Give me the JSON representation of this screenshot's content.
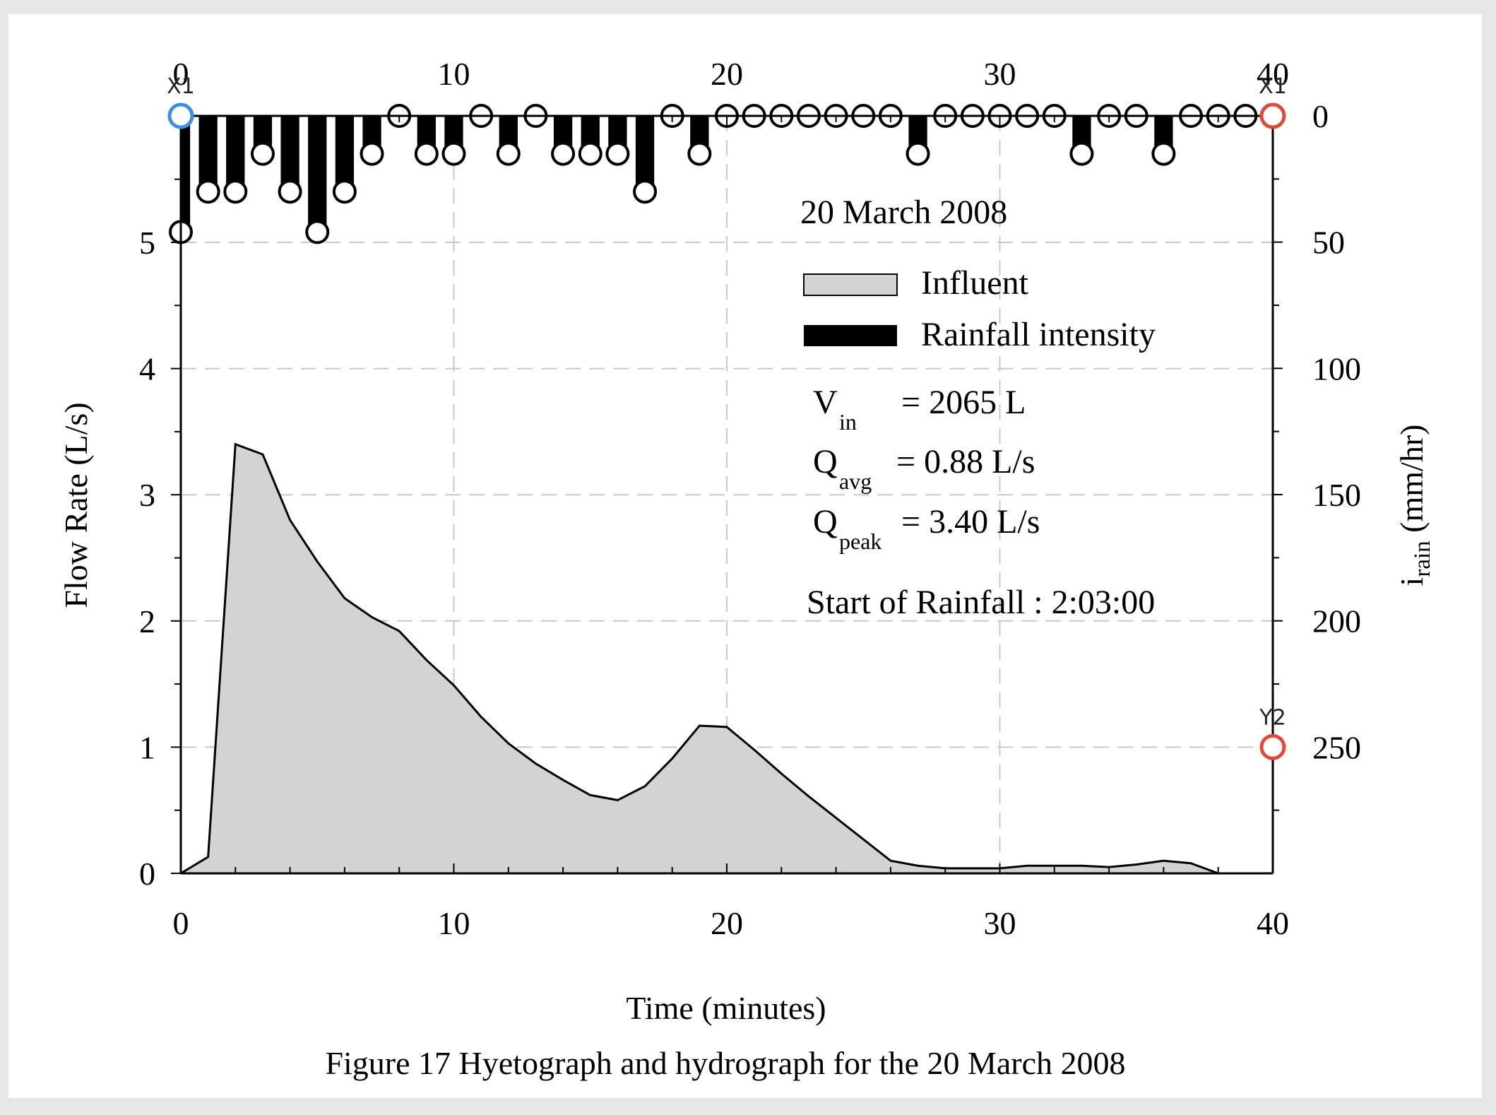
{
  "caption": "Figure 17 Hyetograph and hydrograph for the 20 March 2008",
  "colors": {
    "area_fill": "#d3d3d3",
    "bar_fill": "#000000",
    "grid": "#c8c8c8",
    "handle_blue": "#3d8fe0",
    "handle_red": "#e04a3a"
  },
  "chart_data": {
    "type": "area",
    "title": "20 March 2008",
    "xlabel": "Time (minutes)",
    "ylabel": "Flow Rate (L/s)",
    "y2label_main": "i",
    "y2label_sub": "rain",
    "y2label_units": " (mm/hr)",
    "xlim": [
      0,
      40
    ],
    "ylim": [
      0,
      6
    ],
    "y2lim": [
      0,
      300
    ],
    "y2_inverted": true,
    "grid": true,
    "legend_position": "top-right",
    "x_ticks": [
      0,
      10,
      20,
      30,
      40
    ],
    "y_ticks": [
      0,
      1,
      2,
      3,
      4,
      5
    ],
    "y2_ticks": [
      0,
      50,
      100,
      150,
      200,
      250
    ],
    "series": [
      {
        "name": "Influent",
        "type": "area",
        "x": [
          0,
          1,
          2,
          3,
          4,
          5,
          6,
          7,
          8,
          9,
          10,
          11,
          12,
          13,
          14,
          15,
          16,
          17,
          18,
          19,
          20,
          21,
          22,
          23,
          24,
          25,
          26,
          27,
          28,
          29,
          30,
          31,
          32,
          33,
          34,
          35,
          36,
          37,
          38,
          39,
          40
        ],
        "y": [
          0.0,
          0.13,
          3.4,
          3.32,
          2.8,
          2.47,
          2.18,
          2.03,
          1.92,
          1.69,
          1.49,
          1.24,
          1.03,
          0.87,
          0.74,
          0.62,
          0.58,
          0.69,
          0.91,
          1.17,
          1.16,
          0.98,
          0.79,
          0.61,
          0.44,
          0.27,
          0.1,
          0.06,
          0.04,
          0.04,
          0.04,
          0.06,
          0.06,
          0.06,
          0.05,
          0.07,
          0.1,
          0.08,
          0.0,
          0.0,
          0.0
        ]
      },
      {
        "name": "Rainfall intensity",
        "type": "bar",
        "axis": "y2",
        "x": [
          0,
          1,
          2,
          3,
          4,
          5,
          6,
          7,
          8,
          9,
          10,
          11,
          12,
          13,
          14,
          15,
          16,
          17,
          18,
          19,
          20,
          21,
          22,
          23,
          24,
          25,
          26,
          27,
          28,
          29,
          30,
          31,
          32,
          33,
          34,
          35,
          36,
          37,
          38,
          39,
          40
        ],
        "values": [
          46,
          30,
          30,
          15,
          30,
          46,
          30,
          15,
          0,
          15,
          15,
          0,
          15,
          0,
          15,
          15,
          15,
          30,
          0,
          15,
          0,
          0,
          0,
          0,
          0,
          0,
          0,
          15,
          0,
          0,
          0,
          0,
          0,
          15,
          0,
          0,
          15,
          0,
          0,
          0,
          0
        ]
      }
    ],
    "annotations": [
      {
        "main": "V",
        "sub": "in",
        "rest": " = 2065 L"
      },
      {
        "main": "Q",
        "sub": "avg",
        "rest": " = 0.88 L/s"
      },
      {
        "main": "Q",
        "sub": "peak",
        "rest": " = 3.40 L/s"
      }
    ],
    "start_note": "Start of Rainfall : 2:03:00",
    "handles": {
      "x1_left": {
        "label": "X1",
        "x": 0,
        "y2": 0,
        "color": "blue"
      },
      "x1_right": {
        "label": "X1",
        "x": 40,
        "y2": 0,
        "color": "red"
      },
      "y2": {
        "label": "Y2",
        "x": 40,
        "y2": 250,
        "color": "red"
      }
    }
  }
}
